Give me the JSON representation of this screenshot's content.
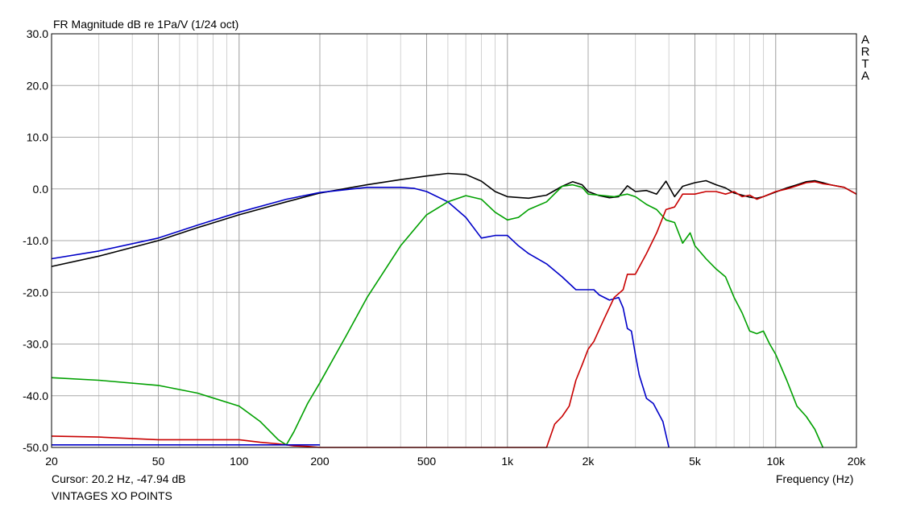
{
  "chart_data": {
    "type": "line",
    "title": "FR Magnitude dB re 1Pa/V (1/24 oct)",
    "watermark": "ARTA",
    "xlabel": "Frequency (Hz)",
    "ylabel": "",
    "x_scale": "log",
    "xlim": [
      20,
      20000
    ],
    "ylim": [
      -50,
      30
    ],
    "grid": true,
    "legend": "none",
    "x_ticks": [
      {
        "value": 20,
        "label": "20"
      },
      {
        "value": 50,
        "label": "50"
      },
      {
        "value": 100,
        "label": "100"
      },
      {
        "value": 200,
        "label": "200"
      },
      {
        "value": 500,
        "label": "500"
      },
      {
        "value": 1000,
        "label": "1k"
      },
      {
        "value": 2000,
        "label": "2k"
      },
      {
        "value": 5000,
        "label": "5k"
      },
      {
        "value": 10000,
        "label": "10k"
      },
      {
        "value": 20000,
        "label": "20k"
      }
    ],
    "y_ticks": [
      {
        "value": 30,
        "label": "30.0"
      },
      {
        "value": 20,
        "label": "20.0"
      },
      {
        "value": 10,
        "label": "10.0"
      },
      {
        "value": 0,
        "label": "0.0"
      },
      {
        "value": -10,
        "label": "-10.0"
      },
      {
        "value": -20,
        "label": "-20.0"
      },
      {
        "value": -30,
        "label": "-30.0"
      },
      {
        "value": -40,
        "label": "-40.0"
      },
      {
        "value": -50,
        "label": "-50.0"
      }
    ],
    "series": [
      {
        "color": "#000000",
        "x": [
          20,
          30,
          50,
          70,
          100,
          150,
          200,
          300,
          400,
          500,
          600,
          700,
          800,
          900,
          1000,
          1200,
          1400,
          1600,
          1750,
          1900,
          2000,
          2200,
          2400,
          2600,
          2800,
          3000,
          3300,
          3600,
          3900,
          4200,
          4500,
          5000,
          5500,
          6000,
          6500,
          7000,
          7500,
          8000,
          8500,
          9000,
          10000,
          11000,
          12000,
          13000,
          14000,
          15000,
          16000,
          18000,
          20000
        ],
        "y": [
          -15,
          -13,
          -10,
          -7.5,
          -5,
          -2.5,
          -0.8,
          0.8,
          1.8,
          2.5,
          3,
          2.8,
          1.5,
          -0.5,
          -1.5,
          -1.8,
          -1.2,
          0.5,
          1.4,
          0.8,
          -0.5,
          -1.3,
          -1.7,
          -1.5,
          0.6,
          -0.5,
          -0.3,
          -1,
          1.5,
          -1.5,
          0.5,
          1.2,
          1.6,
          0.8,
          0.2,
          -0.8,
          -1.2,
          -1.6,
          -1.8,
          -1.5,
          -0.6,
          0.2,
          0.8,
          1.4,
          1.6,
          1.2,
          0.8,
          0.3,
          -1
        ]
      },
      {
        "color": "#0000c8",
        "x": [
          20,
          30,
          50,
          70,
          100,
          150,
          200,
          300,
          400,
          450,
          500,
          600,
          700,
          800,
          900,
          1000,
          1100,
          1200,
          1400,
          1600,
          1800,
          2000,
          2100,
          2200,
          2400,
          2600,
          2700,
          2800,
          2900,
          3000,
          3100,
          3300,
          3500,
          3800,
          4000
        ],
        "y": [
          -13.5,
          -12,
          -9.5,
          -7,
          -4.5,
          -2,
          -0.7,
          0.3,
          0.3,
          0.1,
          -0.5,
          -2.5,
          -5.5,
          -9.5,
          -9,
          -9,
          -11,
          -12.5,
          -14.5,
          -17,
          -19.5,
          -19.5,
          -19.5,
          -20.5,
          -21.5,
          -21,
          -23,
          -27,
          -27.5,
          -32,
          -36,
          -40.5,
          -41.5,
          -45,
          -50
        ]
      },
      {
        "color": "#00a000",
        "x": [
          20,
          30,
          50,
          70,
          100,
          120,
          140,
          150,
          160,
          180,
          200,
          250,
          300,
          400,
          500,
          600,
          700,
          800,
          900,
          1000,
          1100,
          1200,
          1400,
          1600,
          1750,
          1900,
          2000,
          2200,
          2500,
          2800,
          3000,
          3300,
          3600,
          3900,
          4200,
          4500,
          4800,
          5000,
          5500,
          6000,
          6500,
          7000,
          7500,
          8000,
          8500,
          9000,
          9500,
          10000,
          11000,
          12000,
          13000,
          14000,
          15000
        ],
        "y": [
          -36.5,
          -37,
          -38,
          -39.5,
          -42,
          -45,
          -48.5,
          -49.5,
          -47,
          -41.5,
          -37.5,
          -28.5,
          -21,
          -11,
          -5,
          -2.5,
          -1.3,
          -2,
          -4.5,
          -6,
          -5.5,
          -4,
          -2.5,
          0.5,
          0.8,
          0.3,
          -1,
          -1.2,
          -1.5,
          -1,
          -1.5,
          -3,
          -4,
          -6,
          -6.5,
          -10.5,
          -8.5,
          -11,
          -13.5,
          -15.5,
          -17,
          -21,
          -24,
          -27.5,
          -28,
          -27.5,
          -30,
          -32,
          -37,
          -42,
          -44,
          -46.5,
          -50
        ]
      },
      {
        "color": "#c80000",
        "x": [
          20,
          30,
          50,
          70,
          100,
          120,
          140,
          150,
          160,
          180,
          200,
          1400,
          1500,
          1600,
          1700,
          1800,
          1900,
          2000,
          2100,
          2300,
          2500,
          2700,
          2800,
          3000,
          3300,
          3600,
          3900,
          4200,
          4500,
          5000,
          5500,
          6000,
          6500,
          7000,
          7500,
          8000,
          8500,
          9000,
          10000,
          11000,
          12000,
          13000,
          14000,
          15000,
          16000,
          18000,
          20000
        ],
        "y": [
          -47.8,
          -48,
          -48.5,
          -48.5,
          -48.5,
          -49,
          -49.3,
          -49.5,
          -49.7,
          -49.8,
          -50,
          -50,
          -45.5,
          -44,
          -42,
          -37,
          -34,
          -31,
          -29.5,
          -25,
          -21,
          -19.5,
          -16.5,
          -16.5,
          -12.5,
          -8.5,
          -4,
          -3.5,
          -1,
          -1,
          -0.5,
          -0.5,
          -1,
          -0.5,
          -1.5,
          -1.2,
          -2,
          -1.5,
          -0.5,
          0,
          0.6,
          1.2,
          1.4,
          1,
          0.8,
          0.3,
          -1
        ]
      },
      {
        "color": "#0000c8",
        "x": [
          20,
          100,
          200
        ],
        "y": [
          -49.5,
          -49.5,
          -49.5
        ]
      }
    ]
  },
  "footer": {
    "cursor": "Cursor: 20.2 Hz, -47.94 dB",
    "note": "VINTAGES XO POINTS"
  }
}
